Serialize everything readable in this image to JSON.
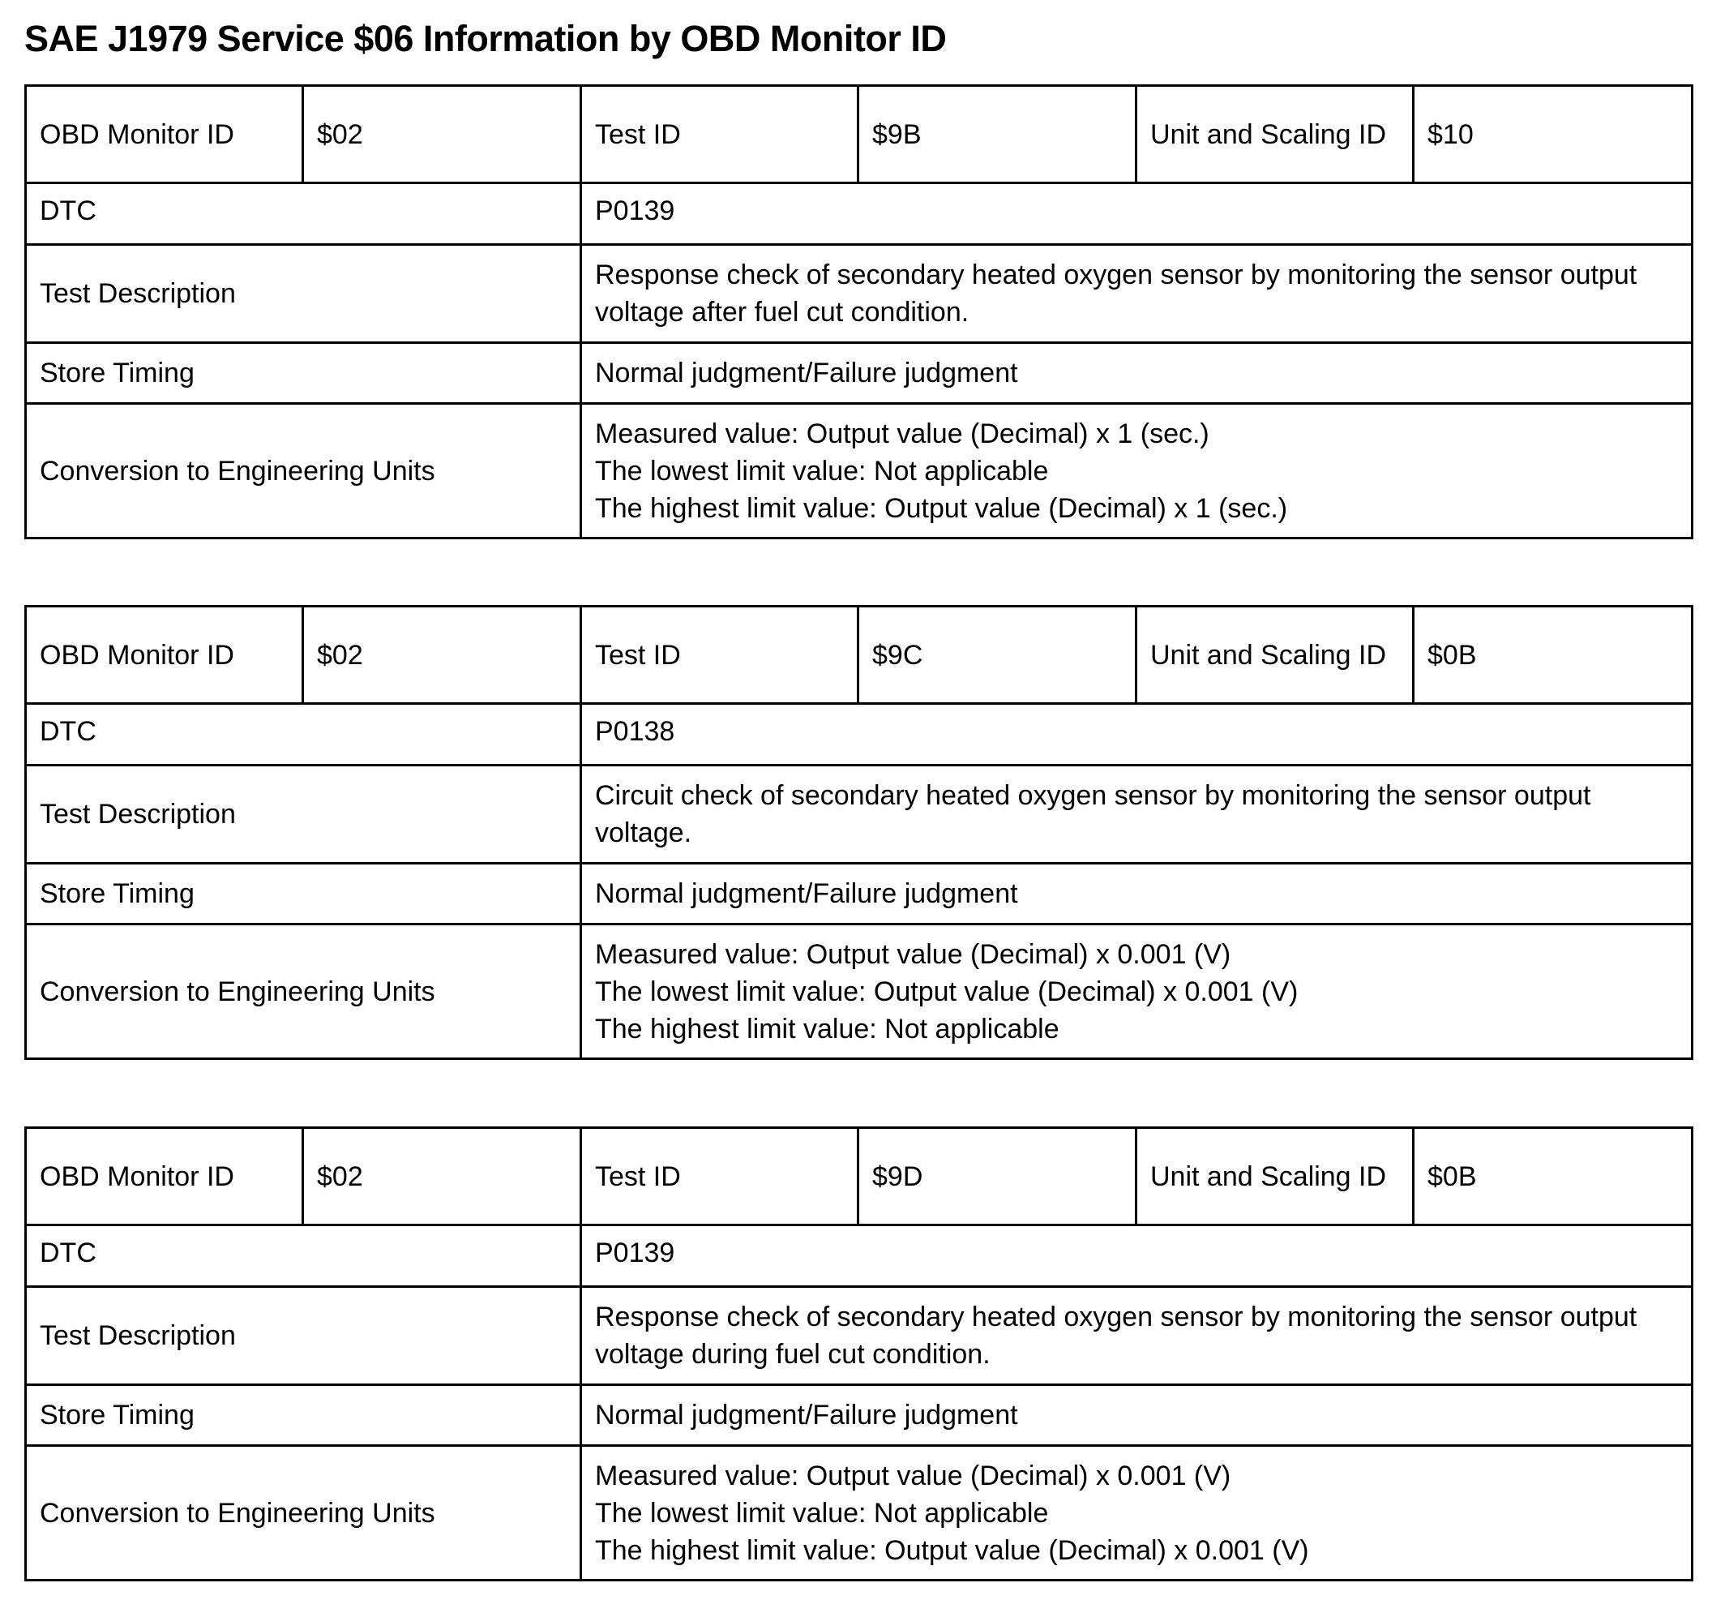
{
  "title": "SAE J1979 Service $06 Information by OBD Monitor ID",
  "labels": {
    "monitor_id": "OBD Monitor ID",
    "test_id": "Test ID",
    "unit_scaling": "Unit and Scaling ID",
    "dtc": "DTC",
    "test_description": "Test Description",
    "store_timing": "Store Timing",
    "conversion": "Conversion to Engineering Units"
  },
  "tables": [
    {
      "monitor_id": "$02",
      "test_id": "$9B",
      "unit_scaling_id": "$10",
      "dtc": "P0139",
      "test_description": "Response check of secondary heated oxygen sensor by monitoring the sensor output voltage after fuel cut condition.",
      "store_timing": "Normal judgment/Failure judgment",
      "conversion": [
        "Measured value: Output value (Decimal) x 1 (sec.)",
        "The lowest limit value: Not applicable",
        "The highest limit value: Output value (Decimal) x 1 (sec.)"
      ]
    },
    {
      "monitor_id": "$02",
      "test_id": "$9C",
      "unit_scaling_id": "$0B",
      "dtc": "P0138",
      "test_description": "Circuit check of secondary heated oxygen sensor by monitoring the sensor output voltage.",
      "store_timing": "Normal judgment/Failure judgment",
      "conversion": [
        "Measured value: Output value (Decimal) x 0.001 (V)",
        "The lowest limit value: Output value (Decimal) x 0.001 (V)",
        "The highest limit value: Not applicable"
      ]
    },
    {
      "monitor_id": "$02",
      "test_id": "$9D",
      "unit_scaling_id": "$0B",
      "dtc": "P0139",
      "test_description": "Response check of secondary heated oxygen sensor by monitoring the sensor output voltage during fuel cut condition.",
      "store_timing": "Normal judgment/Failure judgment",
      "conversion": [
        "Measured value: Output value (Decimal) x 0.001 (V)",
        "The lowest limit value: Not applicable",
        "The highest limit value: Output value (Decimal) x 0.001 (V)"
      ]
    }
  ]
}
